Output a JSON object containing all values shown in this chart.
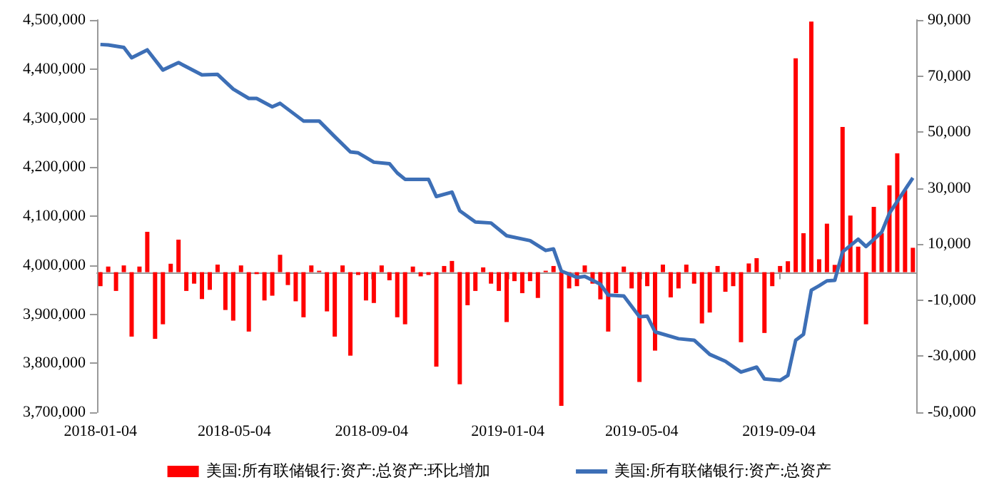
{
  "chart_data": {
    "type": "bar",
    "x": [
      "2018-01-04",
      "2018-01-11",
      "2018-01-18",
      "2018-01-25",
      "2018-02-01",
      "2018-02-08",
      "2018-02-15",
      "2018-02-22",
      "2018-03-01",
      "2018-03-08",
      "2018-03-15",
      "2018-03-22",
      "2018-03-29",
      "2018-04-05",
      "2018-04-12",
      "2018-04-19",
      "2018-04-26",
      "2018-05-03",
      "2018-05-10",
      "2018-05-17",
      "2018-05-24",
      "2018-05-31",
      "2018-06-07",
      "2018-06-14",
      "2018-06-21",
      "2018-06-28",
      "2018-07-05",
      "2018-07-12",
      "2018-07-19",
      "2018-07-26",
      "2018-08-02",
      "2018-08-09",
      "2018-08-16",
      "2018-08-23",
      "2018-08-30",
      "2018-09-06",
      "2018-09-13",
      "2018-09-20",
      "2018-09-27",
      "2018-10-04",
      "2018-10-11",
      "2018-10-18",
      "2018-10-25",
      "2018-11-01",
      "2018-11-08",
      "2018-11-15",
      "2018-11-22",
      "2018-11-29",
      "2018-12-06",
      "2018-12-13",
      "2018-12-20",
      "2018-12-27",
      "2019-01-03",
      "2019-01-10",
      "2019-01-17",
      "2019-01-24",
      "2019-01-31",
      "2019-02-07",
      "2019-02-14",
      "2019-02-21",
      "2019-02-28",
      "2019-03-07",
      "2019-03-14",
      "2019-03-21",
      "2019-03-28",
      "2019-04-04",
      "2019-04-11",
      "2019-04-18",
      "2019-04-25",
      "2019-05-02",
      "2019-05-09",
      "2019-05-16",
      "2019-05-23",
      "2019-05-30",
      "2019-06-06",
      "2019-06-13",
      "2019-06-20",
      "2019-06-27",
      "2019-07-04",
      "2019-07-11",
      "2019-07-18",
      "2019-07-25",
      "2019-08-01",
      "2019-08-08",
      "2019-08-15",
      "2019-08-22",
      "2019-08-29",
      "2019-09-05",
      "2019-09-12",
      "2019-09-19",
      "2019-09-26",
      "2019-10-03",
      "2019-10-10",
      "2019-10-17",
      "2019-10-24",
      "2019-10-31",
      "2019-11-07",
      "2019-11-14",
      "2019-11-21",
      "2019-11-28",
      "2019-12-05",
      "2019-12-12",
      "2019-12-19",
      "2019-12-26",
      "2020-01-02"
    ],
    "series": [
      {
        "name": "美国:所有联储银行:资产:总资产:环比增加",
        "axis": "y2",
        "color": "#ff0000",
        "values": [
          -5000,
          2000,
          -6700,
          2400,
          -23000,
          2000,
          14400,
          -23800,
          -18600,
          3000,
          11600,
          -6700,
          -4100,
          -9600,
          -6300,
          2700,
          -13500,
          -17300,
          2400,
          -21200,
          -700,
          -10100,
          -8400,
          6200,
          -4600,
          -10400,
          -16100,
          2400,
          500,
          -14000,
          -23000,
          2400,
          -29800,
          -1000,
          -10100,
          -11000,
          2400,
          -2900,
          -16100,
          -18600,
          2000,
          -1500,
          -1000,
          -33700,
          2200,
          4000,
          -40000,
          -11800,
          -6700,
          1700,
          -4100,
          -6700,
          -17800,
          -3200,
          -7500,
          -3200,
          -9200,
          500,
          2200,
          -47700,
          -5800,
          -5000,
          2400,
          -4100,
          -9700,
          -21200,
          -7500,
          2000,
          -5800,
          -39200,
          -5000,
          -28000,
          2700,
          -9000,
          -5800,
          2700,
          -4100,
          -18300,
          -14400,
          2200,
          -7000,
          -5000,
          -25000,
          3100,
          5000,
          -21700,
          -5000,
          2200,
          3900,
          76300,
          13900,
          89400,
          4600,
          17300,
          2600,
          51800,
          20200,
          9100,
          -18600,
          23300,
          13900,
          31000,
          42400,
          29300,
          8700
        ]
      },
      {
        "name": "美国:所有联储银行:资产:总资产",
        "type": "line",
        "axis": "y",
        "color": "#3d6fb6",
        "x": [
          "2018-01-04",
          "2018-01-11",
          "2018-01-25",
          "2018-02-01",
          "2018-02-15",
          "2018-03-01",
          "2018-03-15",
          "2018-04-05",
          "2018-04-19",
          "2018-05-03",
          "2018-05-17",
          "2018-05-24",
          "2018-06-07",
          "2018-06-14",
          "2018-07-05",
          "2018-07-19",
          "2018-08-02",
          "2018-08-16",
          "2018-08-23",
          "2018-09-06",
          "2018-09-20",
          "2018-09-27",
          "2018-10-04",
          "2018-10-25",
          "2018-11-01",
          "2018-11-15",
          "2018-11-22",
          "2018-12-06",
          "2018-12-20",
          "2019-01-03",
          "2019-01-24",
          "2019-02-07",
          "2019-02-14",
          "2019-02-21",
          "2019-03-07",
          "2019-03-14",
          "2019-03-28",
          "2019-04-04",
          "2019-04-18",
          "2019-05-02",
          "2019-05-09",
          "2019-05-16",
          "2019-06-06",
          "2019-06-20",
          "2019-07-04",
          "2019-07-18",
          "2019-08-01",
          "2019-08-15",
          "2019-08-22",
          "2019-09-05",
          "2019-09-12",
          "2019-09-19",
          "2019-09-26",
          "2019-10-03",
          "2019-10-10",
          "2019-10-17",
          "2019-10-24",
          "2019-10-31",
          "2019-11-14",
          "2019-11-21",
          "2019-12-05",
          "2019-12-12",
          "2019-12-26",
          "2020-01-02"
        ],
        "values": [
          4450000,
          4449000,
          4444000,
          4423000,
          4439000,
          4398000,
          4413000,
          4388000,
          4389000,
          4359000,
          4340000,
          4340000,
          4323000,
          4330000,
          4294000,
          4294000,
          4262000,
          4231000,
          4229000,
          4210000,
          4207000,
          4188000,
          4175000,
          4175000,
          4140000,
          4149000,
          4111000,
          4088000,
          4086000,
          4060000,
          4050000,
          4030000,
          4033000,
          3988000,
          3975000,
          3977000,
          3961000,
          3939000,
          3937000,
          3895000,
          3896000,
          3864000,
          3850000,
          3847000,
          3818000,
          3804000,
          3782000,
          3792000,
          3768000,
          3765000,
          3775000,
          3847000,
          3859000,
          3949000,
          3958000,
          3968000,
          3969000,
          4027000,
          4053000,
          4038000,
          4067000,
          4106000,
          4154000,
          4178000
        ]
      }
    ],
    "xlim": [
      "2018-01-01",
      "2020-01-05"
    ],
    "xticks": [
      "2018-01-04",
      "2018-05-04",
      "2018-09-04",
      "2019-01-04",
      "2019-05-04",
      "2019-09-04"
    ],
    "ylim": [
      3700000,
      4500000
    ],
    "yticks": [
      {
        "value": 3700000,
        "label": "3,700,000"
      },
      {
        "value": 3800000,
        "label": "3,800,000"
      },
      {
        "value": 3900000,
        "label": "3,900,000"
      },
      {
        "value": 4000000,
        "label": "4,000,000"
      },
      {
        "value": 4100000,
        "label": "4,100,000"
      },
      {
        "value": 4200000,
        "label": "4,200,000"
      },
      {
        "value": 4300000,
        "label": "4,300,000"
      },
      {
        "value": 4400000,
        "label": "4,400,000"
      },
      {
        "value": 4500000,
        "label": "4,500,000"
      }
    ],
    "y2lim": [
      -50000,
      90000
    ],
    "y2ticks": [
      {
        "value": -50000,
        "label": "-50,000"
      },
      {
        "value": -30000,
        "label": "-30,000"
      },
      {
        "value": -10000,
        "label": "-10,000"
      },
      {
        "value": 10000,
        "label": "10,000"
      },
      {
        "value": 30000,
        "label": "30,000"
      },
      {
        "value": 50000,
        "label": "50,000"
      },
      {
        "value": 70000,
        "label": "70,000"
      },
      {
        "value": 90000,
        "label": "90,000"
      }
    ],
    "grid": false,
    "legend": "bottom",
    "marker": "none"
  }
}
